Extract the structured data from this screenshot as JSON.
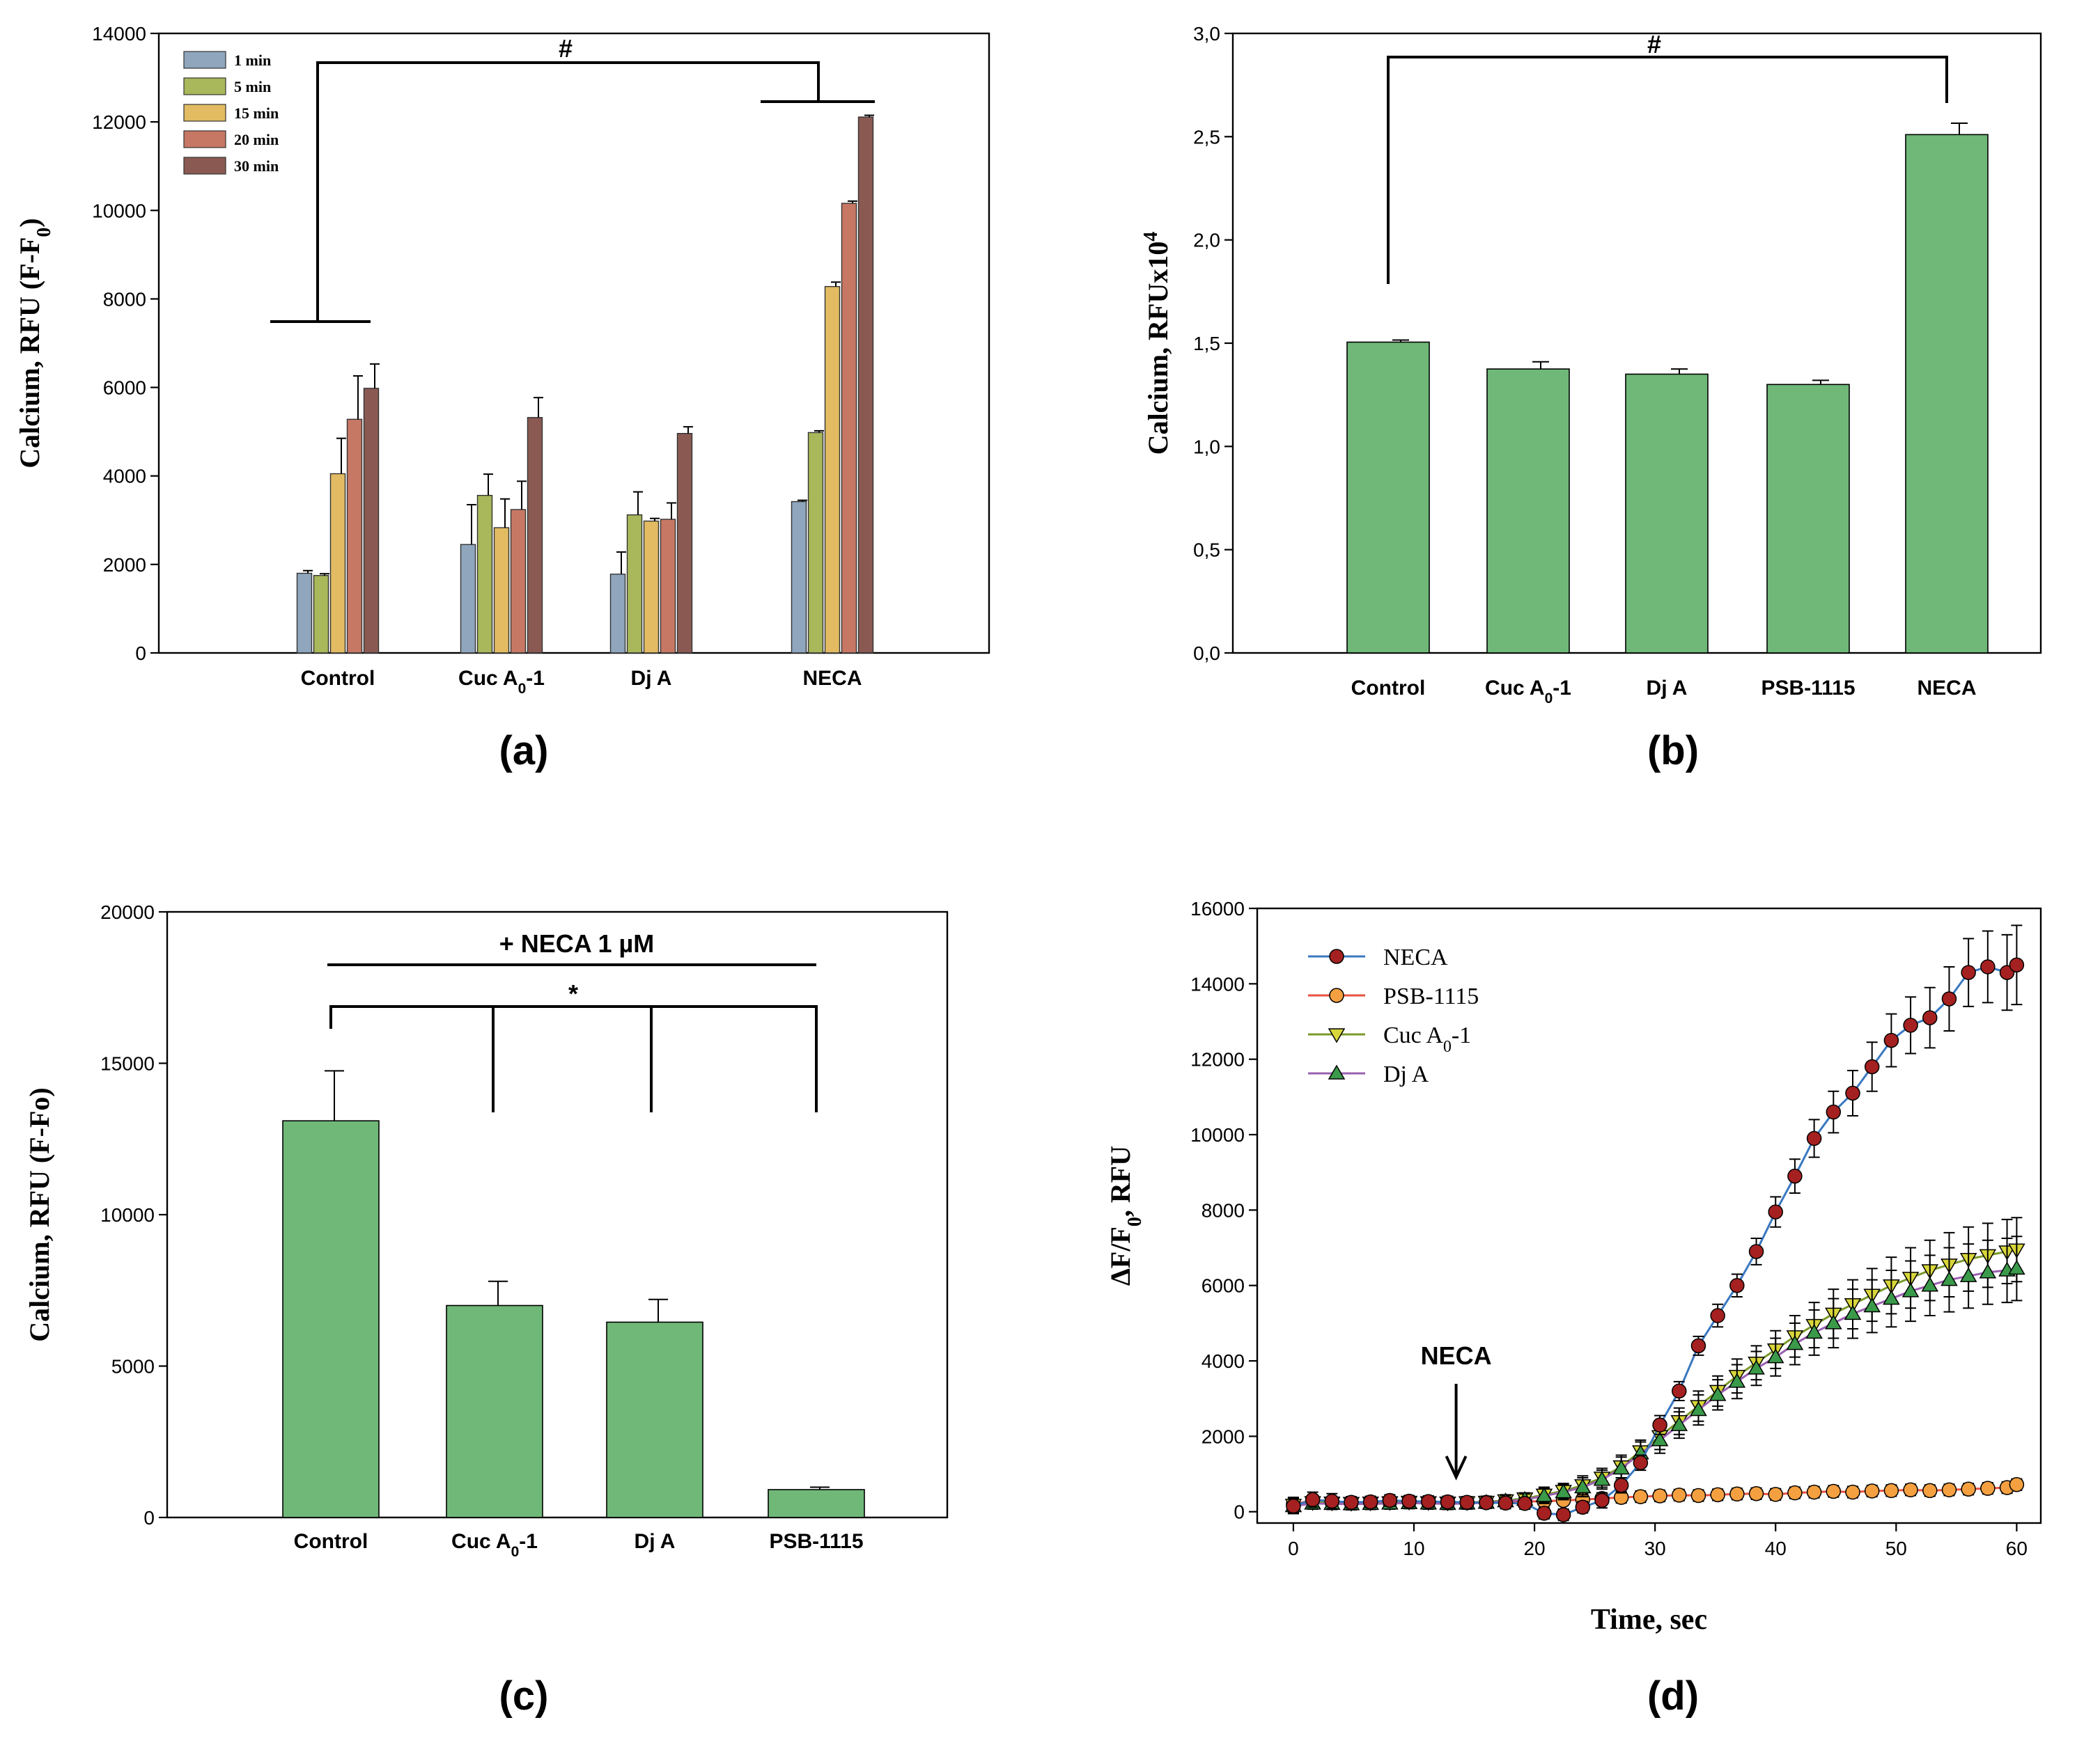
{
  "colors": {
    "green_bar": "#6fb878",
    "blue": "#8fa6bd",
    "olive": "#a8b85a",
    "gold": "#e2bb62",
    "rust": "#c77864",
    "brown": "#8a5a52",
    "neca_marker": "#a52020",
    "neca_line": "#3a78c0",
    "psb_marker": "#f4a040",
    "psb_line": "#e85040",
    "cuc_marker": "#d8d63a",
    "dja_marker": "#3a9a4a",
    "dja_line": "#9a60b0"
  },
  "chart_data": [
    {
      "id": "a",
      "type": "bar",
      "panel_label": "(a)",
      "ylabel": "Calcium, RFU (F-F0)",
      "ylabel_main": "Calcium, RFU (F-F",
      "ylabel_sub": "0",
      "ylabel_end": ")",
      "ylim": [
        0,
        14000
      ],
      "yticks": [
        "0",
        "2000",
        "4000",
        "6000",
        "8000",
        "10000",
        "12000",
        "14000"
      ],
      "categories": [
        "Control",
        "Cuc A0-1",
        "Dj A",
        "NECA"
      ],
      "category_labels": [
        {
          "main": "Control",
          "sub": "",
          "end": ""
        },
        {
          "main": "Cuc A",
          "sub": "0",
          "end": "-1"
        },
        {
          "main": "Dj A",
          "sub": "",
          "end": ""
        },
        {
          "main": "NECA",
          "sub": "",
          "end": ""
        }
      ],
      "series": [
        {
          "name": "1 min",
          "color": "#8fa6bd",
          "values": [
            1800,
            2450,
            1780,
            3420
          ],
          "errors": [
            60,
            900,
            500,
            30
          ]
        },
        {
          "name": "5 min",
          "color": "#a8b85a",
          "values": [
            1750,
            3560,
            3120,
            4980
          ],
          "errors": [
            40,
            480,
            520,
            40
          ]
        },
        {
          "name": "15 min",
          "color": "#e2bb62",
          "values": [
            4050,
            2830,
            2980,
            8280
          ],
          "errors": [
            800,
            650,
            60,
            100
          ]
        },
        {
          "name": "20 min",
          "color": "#c77864",
          "values": [
            5280,
            3240,
            3020,
            10160
          ],
          "errors": [
            980,
            640,
            370,
            50
          ]
        },
        {
          "name": "30 min",
          "color": "#8a5a52",
          "values": [
            5980,
            5320,
            4960,
            12110
          ],
          "errors": [
            550,
            450,
            150,
            40
          ]
        }
      ],
      "significance": "#"
    },
    {
      "id": "b",
      "type": "bar",
      "panel_label": "(b)",
      "ylabel": "Calcium, RFUx10^4",
      "ylabel_main": "Calcium, RFUx10",
      "ylabel_sup": "4",
      "ylim": [
        0,
        3.0
      ],
      "yticks": [
        "0,0",
        "0,5",
        "1,0",
        "1,5",
        "2,0",
        "2,5",
        "3,0"
      ],
      "categories": [
        "Control",
        "Cuc A0-1",
        "Dj A",
        "PSB-1115",
        "NECA"
      ],
      "category_labels": [
        {
          "main": "Control",
          "sub": "",
          "end": ""
        },
        {
          "main": "Cuc A",
          "sub": "0",
          "end": "-1"
        },
        {
          "main": "Dj A",
          "sub": "",
          "end": ""
        },
        {
          "main": "PSB-1115",
          "sub": "",
          "end": ""
        },
        {
          "main": "NECA",
          "sub": "",
          "end": ""
        }
      ],
      "values": [
        1.505,
        1.375,
        1.35,
        1.3,
        2.51
      ],
      "errors": [
        0.01,
        0.035,
        0.025,
        0.02,
        0.055
      ],
      "significance": "#"
    },
    {
      "id": "c",
      "type": "bar",
      "panel_label": "(c)",
      "ylabel": "Calcium, RFU (F-Fo)",
      "ylim": [
        0,
        20000
      ],
      "yticks": [
        "0",
        "5000",
        "10000",
        "15000",
        "20000"
      ],
      "categories": [
        "Control",
        "Cuc A0-1",
        "Dj A",
        "PSB-1115"
      ],
      "category_labels": [
        {
          "main": "Control",
          "sub": "",
          "end": ""
        },
        {
          "main": "Cuc A",
          "sub": "0",
          "end": "-1"
        },
        {
          "main": "Dj A",
          "sub": "",
          "end": ""
        },
        {
          "main": "PSB-1115",
          "sub": "",
          "end": ""
        }
      ],
      "values": [
        13100,
        7000,
        6450,
        920
      ],
      "errors": [
        1650,
        800,
        750,
        80
      ],
      "annotation": "+ NECA 1 µM",
      "significance": "*"
    },
    {
      "id": "d",
      "type": "line",
      "panel_label": "(d)",
      "xlabel": "Time, sec",
      "ylabel": "ΔF/F0, RFU",
      "ylabel_main": "ΔF/F",
      "ylabel_sub": "0",
      "ylabel_end": ", RFU",
      "xlim": [
        -3,
        62
      ],
      "ylim": [
        -300,
        16000
      ],
      "xticks": [
        "0",
        "10",
        "20",
        "30",
        "40",
        "50",
        "60"
      ],
      "yticks": [
        "0",
        "2000",
        "4000",
        "6000",
        "8000",
        "10000",
        "12000",
        "14000",
        "16000"
      ],
      "arrow_label": "NECA",
      "arrow_x": 13.5,
      "x": [
        0,
        1.6,
        3.2,
        4.8,
        6.4,
        8,
        9.6,
        11.2,
        12.8,
        14.4,
        16,
        17.6,
        19.2,
        20.8,
        22.4,
        24,
        25.6,
        27.2,
        28.8,
        30.4,
        32,
        33.6,
        35.2,
        36.8,
        38.4,
        40,
        41.6,
        43.2,
        44.8,
        46.4,
        48,
        49.6,
        51.2,
        52.8,
        54.4,
        56,
        57.6,
        59.2,
        60
      ],
      "series": [
        {
          "name": "NECA",
          "name_main": "NECA",
          "name_sub": "",
          "name_end": "",
          "marker": "circle",
          "marker_color": "#a52020",
          "line_color": "#3a78c0",
          "values": [
            150,
            320,
            280,
            250,
            260,
            300,
            280,
            270,
            260,
            250,
            240,
            230,
            220,
            -40,
            -80,
            120,
            300,
            700,
            1300,
            2300,
            3200,
            4400,
            5200,
            6000,
            6900,
            7950,
            8900,
            9900,
            10600,
            11100,
            11800,
            12500,
            12900,
            13100,
            13600,
            14300,
            14450,
            14300,
            14500
          ],
          "errors": [
            200,
            200,
            200,
            150,
            150,
            150,
            150,
            150,
            150,
            150,
            150,
            150,
            150,
            150,
            150,
            150,
            200,
            200,
            200,
            250,
            250,
            250,
            300,
            300,
            350,
            400,
            450,
            500,
            550,
            600,
            650,
            700,
            750,
            800,
            850,
            900,
            950,
            1000,
            1050
          ]
        },
        {
          "name": "PSB-1115",
          "name_main": "PSB-1115",
          "name_sub": "",
          "name_end": "",
          "marker": "circle",
          "marker_color": "#f4a040",
          "line_color": "#e85040",
          "values": [
            200,
            300,
            260,
            240,
            250,
            260,
            270,
            260,
            250,
            240,
            250,
            260,
            270,
            280,
            300,
            320,
            350,
            380,
            400,
            420,
            440,
            430,
            450,
            470,
            480,
            460,
            500,
            520,
            540,
            520,
            550,
            560,
            580,
            560,
            580,
            600,
            620,
            640,
            720
          ],
          "errors": [
            150,
            120,
            120,
            120,
            120,
            120,
            120,
            120,
            120,
            120,
            120,
            120,
            120,
            120,
            120,
            150,
            150,
            150,
            150,
            150,
            150,
            150,
            150,
            150,
            150,
            150,
            150,
            150,
            150,
            150,
            150,
            150,
            150,
            150,
            150,
            150,
            150,
            150,
            150
          ]
        },
        {
          "name": "Cuc A0-1",
          "name_main": "Cuc A",
          "name_sub": "0",
          "name_end": "-1",
          "marker": "triangle-down",
          "marker_color": "#d8d63a",
          "line_color": "#7a9a2a",
          "values": [
            180,
            250,
            240,
            230,
            240,
            250,
            260,
            250,
            240,
            250,
            260,
            300,
            350,
            450,
            550,
            700,
            900,
            1200,
            1600,
            2000,
            2400,
            2800,
            3200,
            3600,
            3950,
            4300,
            4650,
            4950,
            5250,
            5500,
            5750,
            6000,
            6200,
            6400,
            6550,
            6700,
            6800,
            6900,
            6950
          ],
          "errors": [
            200,
            150,
            150,
            150,
            150,
            150,
            150,
            150,
            150,
            150,
            150,
            150,
            150,
            200,
            200,
            250,
            250,
            300,
            300,
            350,
            350,
            400,
            400,
            450,
            450,
            500,
            550,
            600,
            650,
            650,
            700,
            750,
            800,
            800,
            850,
            850,
            850,
            850,
            850
          ]
        },
        {
          "name": "Dj A",
          "name_main": "Dj A",
          "name_sub": "",
          "name_end": "",
          "marker": "triangle-up",
          "marker_color": "#3a9a4a",
          "line_color": "#9a60b0",
          "values": [
            150,
            220,
            210,
            200,
            210,
            220,
            230,
            220,
            210,
            220,
            240,
            280,
            320,
            420,
            520,
            650,
            850,
            1150,
            1550,
            1900,
            2300,
            2700,
            3100,
            3450,
            3800,
            4100,
            4450,
            4750,
            5000,
            5250,
            5450,
            5650,
            5850,
            6000,
            6150,
            6250,
            6350,
            6400,
            6450
          ],
          "errors": [
            200,
            150,
            150,
            150,
            150,
            150,
            150,
            150,
            150,
            150,
            150,
            150,
            150,
            200,
            200,
            250,
            250,
            300,
            300,
            350,
            350,
            400,
            400,
            450,
            450,
            500,
            550,
            600,
            650,
            650,
            700,
            750,
            800,
            800,
            850,
            850,
            850,
            850,
            850
          ]
        }
      ]
    }
  ]
}
